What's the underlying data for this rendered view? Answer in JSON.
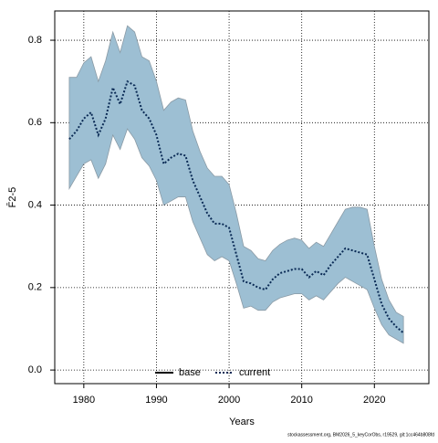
{
  "chart_data": {
    "type": "line",
    "xlabel": "Years",
    "ylabel": "F̄2-5",
    "footer": "stockassessment.org, BM2026_5_keyCorObs, r19529, git:1cc464b808fd",
    "x": [
      1978,
      1979,
      1980,
      1981,
      1982,
      1983,
      1984,
      1985,
      1986,
      1987,
      1988,
      1989,
      1990,
      1991,
      1992,
      1993,
      1994,
      1995,
      1996,
      1997,
      1998,
      1999,
      2000,
      2001,
      2002,
      2003,
      2004,
      2005,
      2006,
      2007,
      2008,
      2009,
      2010,
      2011,
      2012,
      2013,
      2014,
      2015,
      2016,
      2017,
      2018,
      2019,
      2020,
      2021,
      2022,
      2023,
      2024
    ],
    "series": [
      {
        "name": "current",
        "color": "#0a2a55",
        "values": [
          0.56,
          0.58,
          0.61,
          0.625,
          0.57,
          0.61,
          0.685,
          0.645,
          0.7,
          0.69,
          0.63,
          0.61,
          0.57,
          0.5,
          0.515,
          0.525,
          0.52,
          0.46,
          0.42,
          0.38,
          0.355,
          0.355,
          0.345,
          0.28,
          0.215,
          0.21,
          0.2,
          0.195,
          0.22,
          0.235,
          0.24,
          0.245,
          0.245,
          0.225,
          0.24,
          0.23,
          0.255,
          0.275,
          0.295,
          0.29,
          0.285,
          0.28,
          0.22,
          0.16,
          0.125,
          0.105,
          0.09
        ],
        "upper": [
          0.71,
          0.71,
          0.745,
          0.76,
          0.7,
          0.75,
          0.82,
          0.77,
          0.835,
          0.82,
          0.76,
          0.75,
          0.7,
          0.63,
          0.65,
          0.66,
          0.655,
          0.58,
          0.53,
          0.49,
          0.47,
          0.47,
          0.45,
          0.38,
          0.3,
          0.29,
          0.27,
          0.265,
          0.29,
          0.305,
          0.315,
          0.32,
          0.315,
          0.295,
          0.31,
          0.3,
          0.33,
          0.36,
          0.39,
          0.395,
          0.395,
          0.39,
          0.3,
          0.22,
          0.17,
          0.14,
          0.13
        ],
        "lower": [
          0.44,
          0.47,
          0.5,
          0.51,
          0.465,
          0.5,
          0.57,
          0.535,
          0.585,
          0.56,
          0.515,
          0.495,
          0.46,
          0.4,
          0.41,
          0.42,
          0.42,
          0.36,
          0.32,
          0.28,
          0.265,
          0.275,
          0.265,
          0.21,
          0.15,
          0.155,
          0.145,
          0.145,
          0.165,
          0.175,
          0.18,
          0.185,
          0.185,
          0.17,
          0.18,
          0.17,
          0.19,
          0.21,
          0.225,
          0.215,
          0.205,
          0.195,
          0.15,
          0.11,
          0.085,
          0.075,
          0.065
        ],
        "band_color": "#9dbfd3"
      }
    ],
    "legend": [
      {
        "name": "base",
        "color": "#000000"
      },
      {
        "name": "current",
        "color": "#0a2a55"
      }
    ],
    "xlim": [
      1976,
      2027.5
    ],
    "xticks": [
      1980,
      1990,
      2000,
      2010,
      2020
    ],
    "ylim": [
      -0.033,
      0.871
    ],
    "yticks": [
      {
        "value": 0,
        "label": "0.0"
      },
      {
        "value": 0.2,
        "label": "0.2"
      },
      {
        "value": 0.4,
        "label": "0.4"
      },
      {
        "value": 0.6,
        "label": "0.6"
      },
      {
        "value": 0.8,
        "label": "0.8"
      }
    ],
    "grid": true
  }
}
